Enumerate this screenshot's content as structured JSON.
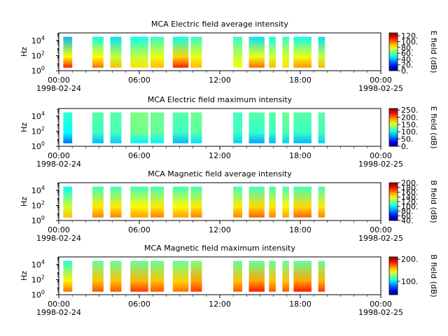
{
  "figure": {
    "start_date": "1998-02-24",
    "end_date": "1998-02-25"
  },
  "chart_data": [
    {
      "type": "heatmap",
      "title": "MCA  Electric field average intensity",
      "ylabel": "Hz",
      "yscale": "log",
      "ylim": [
        1,
        100000
      ],
      "yticks": [
        {
          "value": 1,
          "label": "10",
          "exp": "0"
        },
        {
          "value": 100,
          "label": "10",
          "exp": "2"
        },
        {
          "value": 10000,
          "label": "10",
          "exp": "4"
        }
      ],
      "xlim": [
        "00:00",
        "24:00"
      ],
      "xticks": [
        "00:00",
        "06:00",
        "12:00",
        "18:00",
        "00:00"
      ],
      "colorbar_label": "E field (dB)",
      "colorbar_range": [
        0,
        130
      ],
      "colorbar_ticks": [
        "120.",
        "100.",
        "80.",
        "60.",
        "40.",
        "20.",
        "0."
      ],
      "colorbar_tick_values": [
        120,
        100,
        80,
        60,
        40,
        20,
        0
      ],
      "data_blocks": [
        {
          "start": "00:20",
          "end": "01:00",
          "intensity_low_freq": 110,
          "intensity_high_freq": 40
        },
        {
          "start": "02:30",
          "end": "03:20",
          "intensity_low_freq": 100,
          "intensity_high_freq": 50
        },
        {
          "start": "03:50",
          "end": "04:40",
          "intensity_low_freq": 90,
          "intensity_high_freq": 45
        },
        {
          "start": "05:20",
          "end": "06:40",
          "intensity_low_freq": 85,
          "intensity_high_freq": 50
        },
        {
          "start": "06:50",
          "end": "07:50",
          "intensity_low_freq": 90,
          "intensity_high_freq": 55
        },
        {
          "start": "08:30",
          "end": "09:40",
          "intensity_low_freq": 110,
          "intensity_high_freq": 50
        },
        {
          "start": "09:50",
          "end": "10:40",
          "intensity_low_freq": 90,
          "intensity_high_freq": 55
        },
        {
          "start": "13:00",
          "end": "13:40",
          "intensity_low_freq": 80,
          "intensity_high_freq": 55
        },
        {
          "start": "14:10",
          "end": "15:20",
          "intensity_low_freq": 100,
          "intensity_high_freq": 45
        },
        {
          "start": "15:40",
          "end": "16:10",
          "intensity_low_freq": 90,
          "intensity_high_freq": 50
        },
        {
          "start": "16:40",
          "end": "17:10",
          "intensity_low_freq": 85,
          "intensity_high_freq": 55
        },
        {
          "start": "17:30",
          "end": "18:50",
          "intensity_low_freq": 95,
          "intensity_high_freq": 50
        },
        {
          "start": "19:20",
          "end": "19:50",
          "intensity_low_freq": 90,
          "intensity_high_freq": 45
        }
      ]
    },
    {
      "type": "heatmap",
      "title": "MCA  Electric field maximum intensity",
      "ylabel": "Hz",
      "yscale": "log",
      "ylim": [
        1,
        100000
      ],
      "yticks": [
        {
          "value": 1,
          "label": "10",
          "exp": "0"
        },
        {
          "value": 100,
          "label": "10",
          "exp": "2"
        },
        {
          "value": 10000,
          "label": "10",
          "exp": "4"
        }
      ],
      "xlim": [
        "00:00",
        "24:00"
      ],
      "xticks": [
        "00:00",
        "06:00",
        "12:00",
        "18:00",
        "00:00"
      ],
      "colorbar_label": "E field (dB)",
      "colorbar_range": [
        0,
        260
      ],
      "colorbar_ticks": [
        "250.",
        "200.",
        "150.",
        "100.",
        "50.",
        "0."
      ],
      "colorbar_tick_values": [
        250,
        200,
        150,
        100,
        50,
        0
      ],
      "data_blocks": [
        {
          "start": "00:20",
          "end": "01:00",
          "intensity_low_freq": 60,
          "intensity_high_freq": 110
        },
        {
          "start": "02:30",
          "end": "03:20",
          "intensity_low_freq": 80,
          "intensity_high_freq": 120
        },
        {
          "start": "03:50",
          "end": "04:40",
          "intensity_low_freq": 85,
          "intensity_high_freq": 120
        },
        {
          "start": "05:20",
          "end": "06:40",
          "intensity_low_freq": 95,
          "intensity_high_freq": 130
        },
        {
          "start": "06:50",
          "end": "07:50",
          "intensity_low_freq": 95,
          "intensity_high_freq": 125
        },
        {
          "start": "08:30",
          "end": "09:40",
          "intensity_low_freq": 80,
          "intensity_high_freq": 120
        },
        {
          "start": "09:50",
          "end": "10:40",
          "intensity_low_freq": 90,
          "intensity_high_freq": 125
        },
        {
          "start": "13:00",
          "end": "13:40",
          "intensity_low_freq": 85,
          "intensity_high_freq": 115
        },
        {
          "start": "14:10",
          "end": "15:20",
          "intensity_low_freq": 75,
          "intensity_high_freq": 120
        },
        {
          "start": "15:40",
          "end": "16:10",
          "intensity_low_freq": 80,
          "intensity_high_freq": 120
        },
        {
          "start": "16:40",
          "end": "17:10",
          "intensity_low_freq": 85,
          "intensity_high_freq": 125
        },
        {
          "start": "17:30",
          "end": "18:50",
          "intensity_low_freq": 80,
          "intensity_high_freq": 120
        },
        {
          "start": "19:20",
          "end": "19:50",
          "intensity_low_freq": 85,
          "intensity_high_freq": 120
        }
      ]
    },
    {
      "type": "heatmap",
      "title": "MCA  Magnetic field average intensity",
      "ylabel": "Hz",
      "yscale": "log",
      "ylim": [
        1,
        100000
      ],
      "yticks": [
        {
          "value": 1,
          "label": "10",
          "exp": "0"
        },
        {
          "value": 100,
          "label": "10",
          "exp": "2"
        },
        {
          "value": 10000,
          "label": "10",
          "exp": "4"
        }
      ],
      "xlim": [
        "00:00",
        "24:00"
      ],
      "xticks": [
        "00:00",
        "06:00",
        "12:00",
        "18:00",
        "00:00"
      ],
      "colorbar_label": "B field (dB)",
      "colorbar_range": [
        40,
        200
      ],
      "colorbar_ticks": [
        "200.",
        "180.",
        "160.",
        "140.",
        "120.",
        "100.",
        "80.",
        "60.",
        "40."
      ],
      "colorbar_tick_values": [
        200,
        180,
        160,
        140,
        120,
        100,
        80,
        60,
        40
      ],
      "data_blocks": [
        {
          "start": "00:20",
          "end": "01:00",
          "intensity_low_freq": 150,
          "intensity_high_freq": 100
        },
        {
          "start": "02:30",
          "end": "03:20",
          "intensity_low_freq": 160,
          "intensity_high_freq": 110
        },
        {
          "start": "03:50",
          "end": "04:40",
          "intensity_low_freq": 160,
          "intensity_high_freq": 110
        },
        {
          "start": "05:20",
          "end": "06:40",
          "intensity_low_freq": 155,
          "intensity_high_freq": 110
        },
        {
          "start": "06:50",
          "end": "07:50",
          "intensity_low_freq": 160,
          "intensity_high_freq": 110
        },
        {
          "start": "08:30",
          "end": "09:40",
          "intensity_low_freq": 155,
          "intensity_high_freq": 110
        },
        {
          "start": "09:50",
          "end": "10:40",
          "intensity_low_freq": 160,
          "intensity_high_freq": 110
        },
        {
          "start": "13:00",
          "end": "13:40",
          "intensity_low_freq": 160,
          "intensity_high_freq": 110
        },
        {
          "start": "14:10",
          "end": "15:20",
          "intensity_low_freq": 165,
          "intensity_high_freq": 110
        },
        {
          "start": "15:40",
          "end": "16:10",
          "intensity_low_freq": 160,
          "intensity_high_freq": 110
        },
        {
          "start": "16:40",
          "end": "17:10",
          "intensity_low_freq": 155,
          "intensity_high_freq": 110
        },
        {
          "start": "17:30",
          "end": "18:50",
          "intensity_low_freq": 165,
          "intensity_high_freq": 110
        },
        {
          "start": "19:20",
          "end": "19:50",
          "intensity_low_freq": 160,
          "intensity_high_freq": 110
        }
      ]
    },
    {
      "type": "heatmap",
      "title": "MCA  Magnetic field maximum intensity",
      "ylabel": "Hz",
      "yscale": "log",
      "ylim": [
        1,
        100000
      ],
      "yticks": [
        {
          "value": 1,
          "label": "10",
          "exp": "0"
        },
        {
          "value": 100,
          "label": "10",
          "exp": "2"
        },
        {
          "value": 10000,
          "label": "10",
          "exp": "4"
        }
      ],
      "xlim": [
        "00:00",
        "24:00"
      ],
      "xticks": [
        "00:00",
        "06:00",
        "12:00",
        "18:00",
        "00:00"
      ],
      "colorbar_label": "B field (dB)",
      "colorbar_range": [
        40,
        210
      ],
      "colorbar_ticks": [
        "200.",
        "100."
      ],
      "colorbar_tick_values": [
        200,
        100
      ],
      "data_blocks": [
        {
          "start": "00:20",
          "end": "01:00",
          "intensity_low_freq": 170,
          "intensity_high_freq": 110
        },
        {
          "start": "02:30",
          "end": "03:20",
          "intensity_low_freq": 175,
          "intensity_high_freq": 120
        },
        {
          "start": "03:50",
          "end": "04:40",
          "intensity_low_freq": 175,
          "intensity_high_freq": 120
        },
        {
          "start": "05:20",
          "end": "06:40",
          "intensity_low_freq": 180,
          "intensity_high_freq": 120
        },
        {
          "start": "06:50",
          "end": "07:50",
          "intensity_low_freq": 175,
          "intensity_high_freq": 120
        },
        {
          "start": "08:30",
          "end": "09:40",
          "intensity_low_freq": 170,
          "intensity_high_freq": 120
        },
        {
          "start": "09:50",
          "end": "10:40",
          "intensity_low_freq": 180,
          "intensity_high_freq": 125
        },
        {
          "start": "13:00",
          "end": "13:40",
          "intensity_low_freq": 175,
          "intensity_high_freq": 120
        },
        {
          "start": "14:10",
          "end": "15:20",
          "intensity_low_freq": 185,
          "intensity_high_freq": 120
        },
        {
          "start": "15:40",
          "end": "16:10",
          "intensity_low_freq": 175,
          "intensity_high_freq": 120
        },
        {
          "start": "16:40",
          "end": "17:10",
          "intensity_low_freq": 175,
          "intensity_high_freq": 120
        },
        {
          "start": "17:30",
          "end": "18:50",
          "intensity_low_freq": 185,
          "intensity_high_freq": 120
        },
        {
          "start": "19:20",
          "end": "19:50",
          "intensity_low_freq": 180,
          "intensity_high_freq": 120
        }
      ]
    }
  ]
}
